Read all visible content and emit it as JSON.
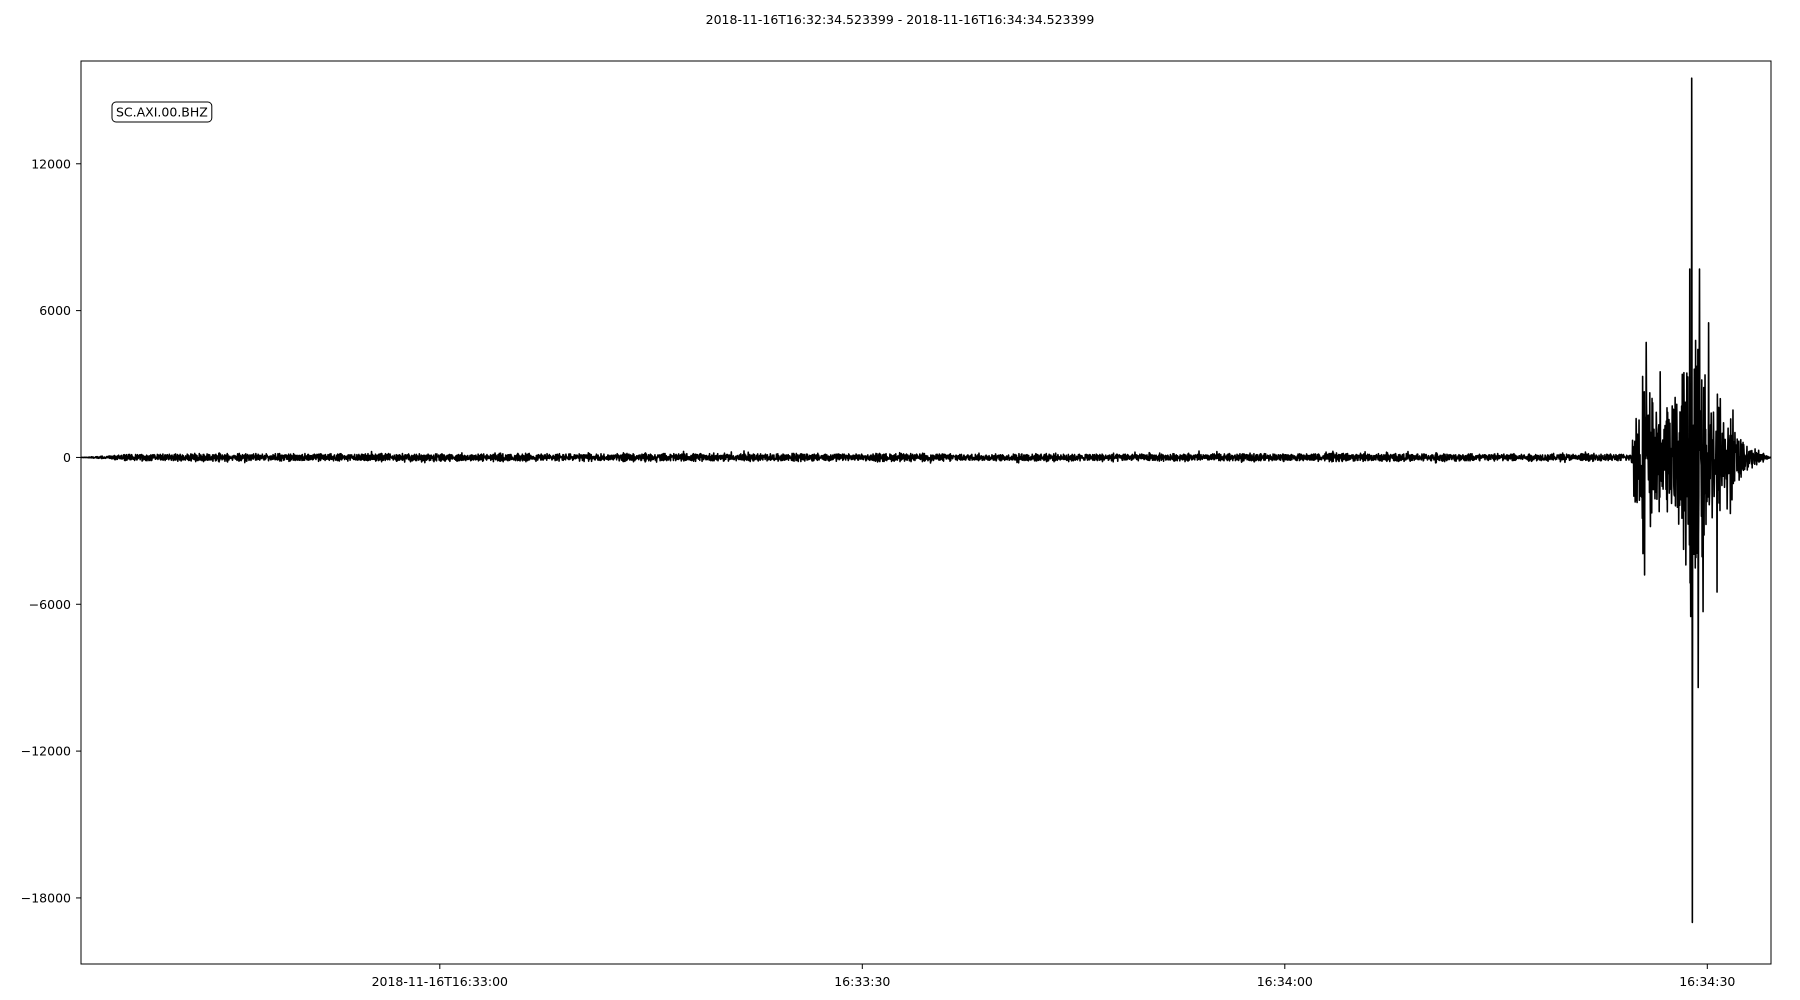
{
  "chart_data": {
    "type": "line",
    "title": "2018-11-16T16:32:34.523399  -  2018-11-16T16:34:34.523399",
    "start_time": "2018-11-16T16:32:34.523399",
    "end_time": "2018-11-16T16:34:34.523399",
    "xlabel": "",
    "ylabel": "",
    "xlim": [
      "2018-11-16T16:32:34.523399",
      "2018-11-16T16:34:34.523399"
    ],
    "ylim": [
      -20700,
      16200
    ],
    "grid": false,
    "legend_placement": "top-left",
    "trace_color": "#000000",
    "series": [
      {
        "name": "SC.AXI.00.BHZ",
        "noise_amplitude": 180,
        "envelope": [
          {
            "t": "2018-11-16T16:32:34.523399",
            "amp": 0
          },
          {
            "t": "2018-11-16T16:32:38.5",
            "amp": 200
          },
          {
            "t": "2018-11-16T16:34:24.6",
            "amp": 200
          },
          {
            "t": "2018-11-16T16:34:24.8",
            "amp": 2600
          },
          {
            "t": "2018-11-16T16:34:25.5",
            "amp": 4500
          },
          {
            "t": "2018-11-16T16:34:27.0",
            "amp": 2000
          },
          {
            "t": "2018-11-16T16:34:28.3",
            "amp": 5000
          },
          {
            "t": "2018-11-16T16:34:29.0",
            "amp": 6500
          },
          {
            "t": "2018-11-16T16:34:30.5",
            "amp": 3500
          },
          {
            "t": "2018-11-16T16:34:32.5",
            "amp": 800
          },
          {
            "t": "2018-11-16T16:34:34.523399",
            "amp": 0
          }
        ],
        "spikes": [
          {
            "t": "2018-11-16T16:34:28.90",
            "value": 15500
          },
          {
            "t": "2018-11-16T16:34:28.93",
            "value": -19000
          },
          {
            "t": "2018-11-16T16:34:28.75",
            "value": 7700
          },
          {
            "t": "2018-11-16T16:34:29.45",
            "value": 7700
          },
          {
            "t": "2018-11-16T16:34:29.35",
            "value": -9400
          },
          {
            "t": "2018-11-16T16:34:25.65",
            "value": 4700
          },
          {
            "t": "2018-11-16T16:34:25.55",
            "value": -4800
          },
          {
            "t": "2018-11-16T16:34:26.65",
            "value": 3500
          },
          {
            "t": "2018-11-16T16:34:30.10",
            "value": 5500
          },
          {
            "t": "2018-11-16T16:34:30.70",
            "value": -5500
          },
          {
            "t": "2018-11-16T16:34:29.70",
            "value": -6300
          },
          {
            "t": "2018-11-16T16:34:28.82",
            "value": -6500
          }
        ]
      }
    ],
    "y_ticks": [
      {
        "value": 12000,
        "label": "12000"
      },
      {
        "value": 6000,
        "label": "6000"
      },
      {
        "value": 0,
        "label": "0"
      },
      {
        "value": -6000,
        "label": "−6000"
      },
      {
        "value": -12000,
        "label": "−12000"
      },
      {
        "value": -18000,
        "label": "−18000"
      }
    ],
    "x_ticks": [
      {
        "value": "2018-11-16T16:33:00",
        "label": "2018-11-16T16:33:00"
      },
      {
        "value": "2018-11-16T16:33:30",
        "label": "16:33:30"
      },
      {
        "value": "2018-11-16T16:34:00",
        "label": "16:34:00"
      },
      {
        "value": "2018-11-16T16:34:30",
        "label": "16:34:30"
      }
    ]
  }
}
